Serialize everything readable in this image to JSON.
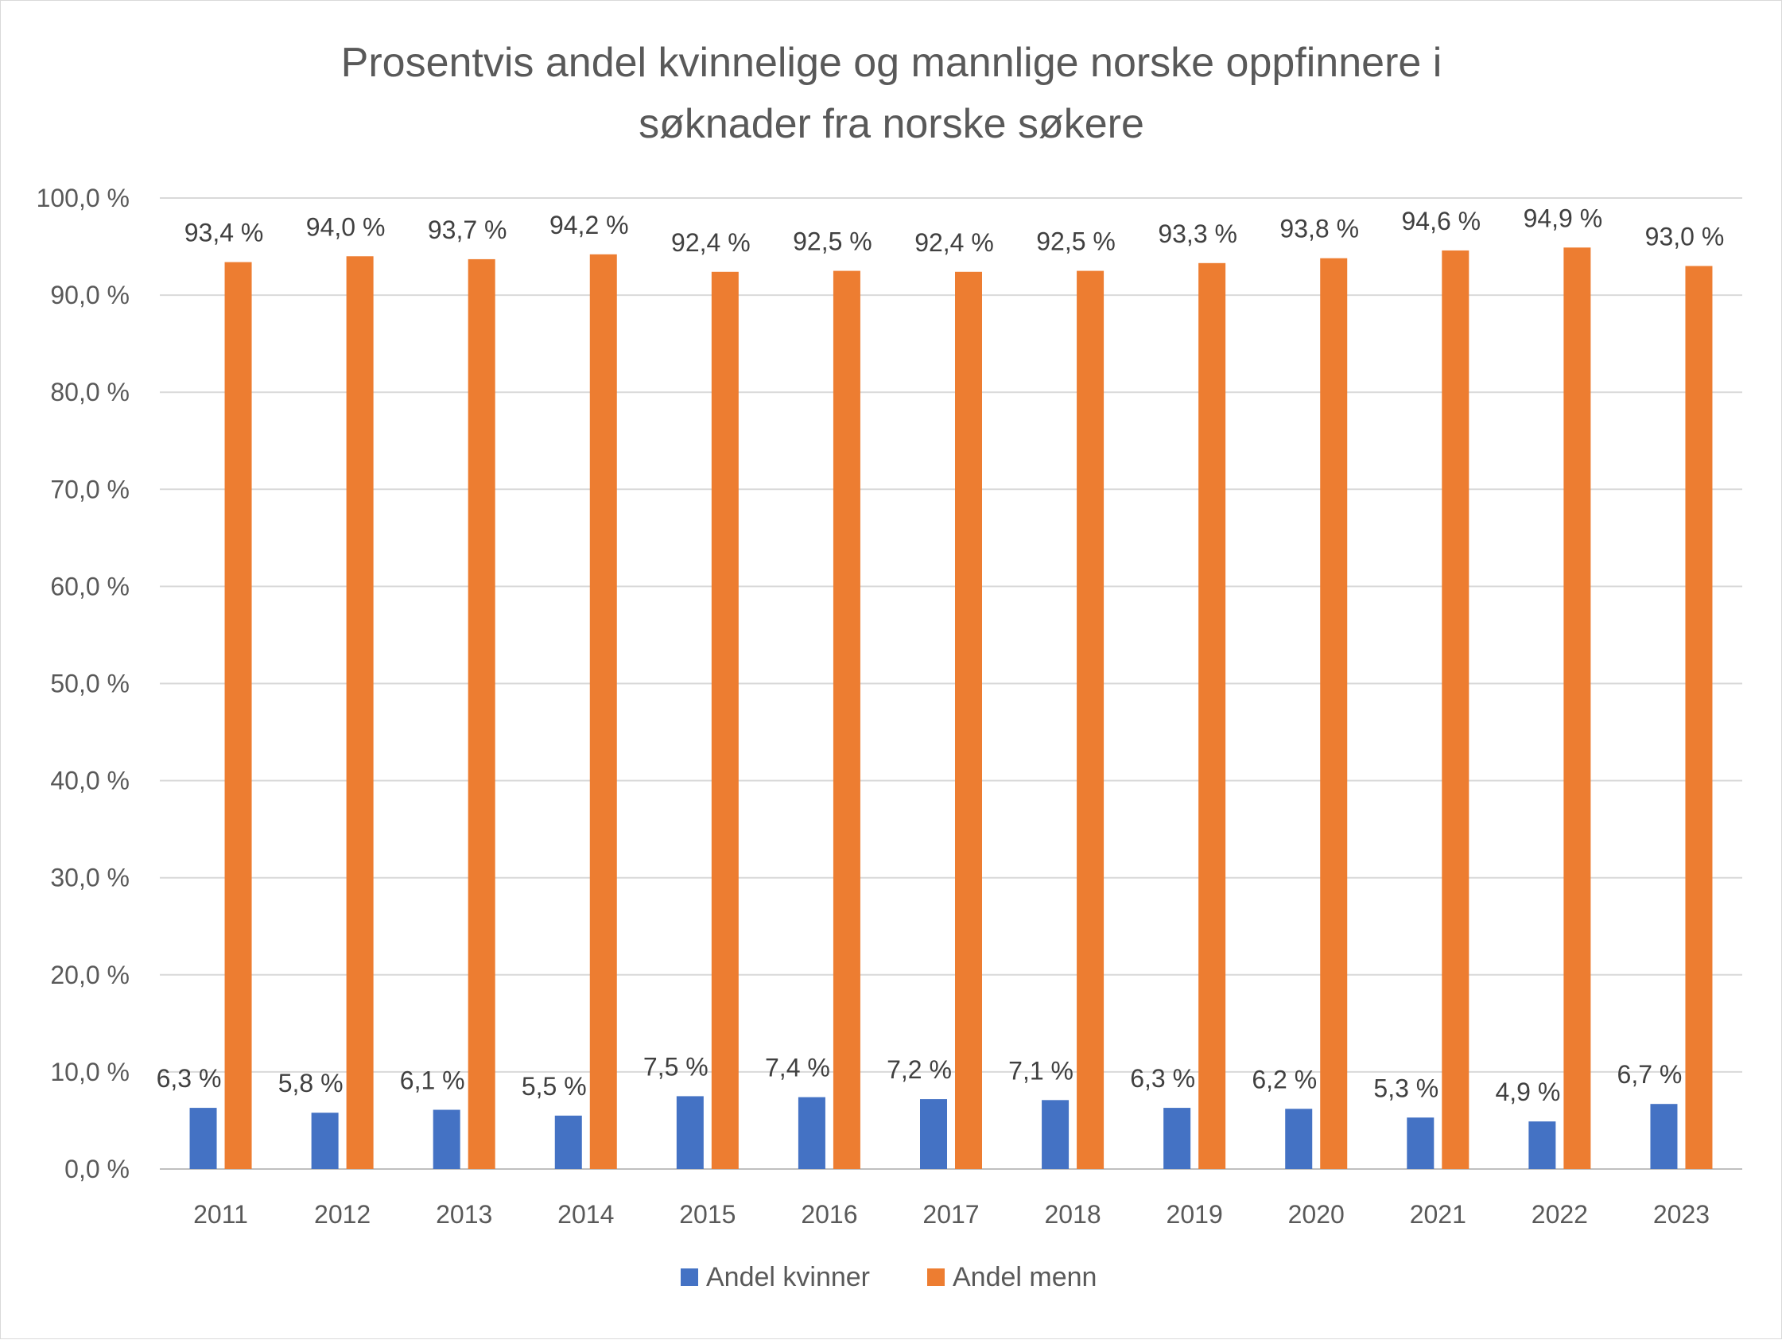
{
  "chart_data": {
    "type": "bar",
    "title_lines": [
      "Prosentvis andel kvinnelige og mannlige norske oppfinnere i",
      "søknader fra norske søkere"
    ],
    "categories": [
      "2011",
      "2012",
      "2013",
      "2014",
      "2015",
      "2016",
      "2017",
      "2018",
      "2019",
      "2020",
      "2021",
      "2022",
      "2023"
    ],
    "series": [
      {
        "name": "Andel kvinner",
        "color": "#4472C4",
        "values": [
          6.3,
          5.8,
          6.1,
          5.5,
          7.5,
          7.4,
          7.2,
          7.1,
          6.3,
          6.2,
          5.3,
          4.9,
          6.7
        ],
        "labels": [
          "6,3 %",
          "5,8 %",
          "6,1 %",
          "5,5 %",
          "7,5 %",
          "7,4 %",
          "7,2 %",
          "7,1 %",
          "6,3 %",
          "6,2 %",
          "5,3 %",
          "4,9 %",
          "6,7 %"
        ]
      },
      {
        "name": "Andel menn",
        "color": "#ED7D31",
        "values": [
          93.4,
          94.0,
          93.7,
          94.2,
          92.4,
          92.5,
          92.4,
          92.5,
          93.3,
          93.8,
          94.6,
          94.9,
          93.0
        ],
        "labels": [
          "93,4 %",
          "94,0 %",
          "93,7 %",
          "94,2 %",
          "92,4 %",
          "92,5 %",
          "92,4 %",
          "92,5 %",
          "93,3 %",
          "93,8 %",
          "94,6 %",
          "94,9 %",
          "93,0 %"
        ]
      }
    ],
    "ylim": [
      0,
      100
    ],
    "yticks": [
      0,
      10,
      20,
      30,
      40,
      50,
      60,
      70,
      80,
      90,
      100
    ],
    "ytick_labels": [
      "0,0 %",
      "10,0 %",
      "20,0 %",
      "30,0 %",
      "40,0 %",
      "50,0 %",
      "60,0 %",
      "70,0 %",
      "80,0 %",
      "90,0 %",
      "100,0 %"
    ],
    "grid": true,
    "legend_position": "bottom"
  }
}
